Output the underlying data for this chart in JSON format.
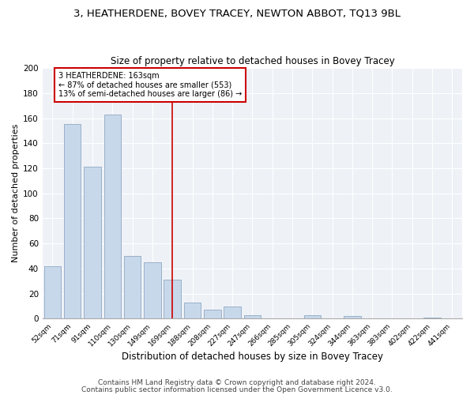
{
  "title1": "3, HEATHERDENE, BOVEY TRACEY, NEWTON ABBOT, TQ13 9BL",
  "title2": "Size of property relative to detached houses in Bovey Tracey",
  "xlabel": "Distribution of detached houses by size in Bovey Tracey",
  "ylabel": "Number of detached properties",
  "bar_labels": [
    "52sqm",
    "71sqm",
    "91sqm",
    "110sqm",
    "130sqm",
    "149sqm",
    "169sqm",
    "188sqm",
    "208sqm",
    "227sqm",
    "247sqm",
    "266sqm",
    "285sqm",
    "305sqm",
    "324sqm",
    "344sqm",
    "363sqm",
    "383sqm",
    "402sqm",
    "422sqm",
    "441sqm"
  ],
  "bar_values": [
    42,
    155,
    121,
    163,
    50,
    45,
    31,
    13,
    7,
    10,
    3,
    0,
    0,
    3,
    0,
    2,
    0,
    0,
    0,
    1,
    0
  ],
  "bar_color": "#c8d8eb",
  "bar_edge_color": "#99b0c8",
  "vline_x_index": 6,
  "vline_color": "#cc0000",
  "annotation_text": "3 HEATHERDENE: 163sqm\n← 87% of detached houses are smaller (553)\n13% of semi-detached houses are larger (86) →",
  "annotation_boxcolor": "white",
  "annotation_boxedge": "#cc0000",
  "ylim": [
    0,
    200
  ],
  "yticks": [
    0,
    20,
    40,
    60,
    80,
    100,
    120,
    140,
    160,
    180,
    200
  ],
  "footer1": "Contains HM Land Registry data © Crown copyright and database right 2024.",
  "footer2": "Contains public sector information licensed under the Open Government Licence v3.0.",
  "background_color": "#eef2f7",
  "title1_fontsize": 9.5,
  "title2_fontsize": 8.5,
  "xlabel_fontsize": 8.5,
  "ylabel_fontsize": 8,
  "footer_fontsize": 6.5
}
